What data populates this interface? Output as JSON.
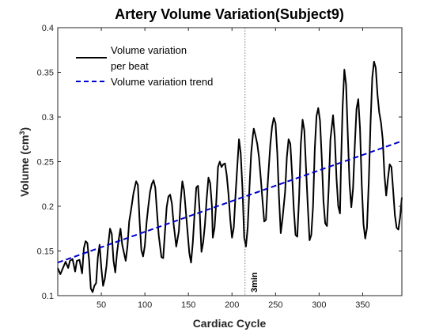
{
  "chart_data": {
    "type": "line",
    "title": "Artery Volume Variation(Subject9)",
    "xlabel": "Cardiac Cycle",
    "ylabel": "Volume (cm",
    "ylabel_sup": "3",
    "ylabel_close": ")",
    "xlim": [
      0,
      395
    ],
    "ylim": [
      0.1,
      0.4
    ],
    "xticks": [
      50,
      100,
      150,
      200,
      250,
      300,
      350
    ],
    "yticks": [
      0.1,
      0.15,
      0.2,
      0.25,
      0.3,
      0.35,
      0.4
    ],
    "ytick_labels": [
      "0.1",
      "0.15",
      "0.2",
      "0.25",
      "0.3",
      "0.35",
      "0.4"
    ],
    "grid": false,
    "legend_position": "top-left",
    "series": [
      {
        "name": "Volume variation per beat",
        "legend_lines": [
          "Volume variation",
          "per beat"
        ],
        "color": "#000000",
        "style": "solid",
        "points": [
          [
            0,
            0.131
          ],
          [
            3,
            0.124
          ],
          [
            6,
            0.131
          ],
          [
            9,
            0.138
          ],
          [
            12,
            0.131
          ],
          [
            14,
            0.139
          ],
          [
            17,
            0.141
          ],
          [
            20,
            0.127
          ],
          [
            22,
            0.139
          ],
          [
            25,
            0.14
          ],
          [
            28,
            0.125
          ],
          [
            30,
            0.153
          ],
          [
            32,
            0.161
          ],
          [
            34,
            0.159
          ],
          [
            36,
            0.14
          ],
          [
            38,
            0.108
          ],
          [
            40,
            0.104
          ],
          [
            42,
            0.111
          ],
          [
            44,
            0.114
          ],
          [
            46,
            0.143
          ],
          [
            48,
            0.157
          ],
          [
            50,
            0.131
          ],
          [
            52,
            0.111
          ],
          [
            54,
            0.119
          ],
          [
            56,
            0.134
          ],
          [
            58,
            0.158
          ],
          [
            60,
            0.175
          ],
          [
            62,
            0.169
          ],
          [
            64,
            0.139
          ],
          [
            66,
            0.126
          ],
          [
            68,
            0.148
          ],
          [
            70,
            0.163
          ],
          [
            72,
            0.175
          ],
          [
            74,
            0.157
          ],
          [
            76,
            0.148
          ],
          [
            78,
            0.139
          ],
          [
            80,
            0.155
          ],
          [
            82,
            0.183
          ],
          [
            84,
            0.195
          ],
          [
            87,
            0.215
          ],
          [
            90,
            0.228
          ],
          [
            92,
            0.224
          ],
          [
            94,
            0.183
          ],
          [
            96,
            0.151
          ],
          [
            98,
            0.144
          ],
          [
            100,
            0.156
          ],
          [
            102,
            0.182
          ],
          [
            104,
            0.2
          ],
          [
            106,
            0.216
          ],
          [
            108,
            0.225
          ],
          [
            110,
            0.229
          ],
          [
            112,
            0.221
          ],
          [
            114,
            0.193
          ],
          [
            116,
            0.167
          ],
          [
            119,
            0.143
          ],
          [
            121,
            0.142
          ],
          [
            123,
            0.171
          ],
          [
            125,
            0.199
          ],
          [
            127,
            0.211
          ],
          [
            129,
            0.213
          ],
          [
            131,
            0.203
          ],
          [
            133,
            0.18
          ],
          [
            136,
            0.155
          ],
          [
            139,
            0.172
          ],
          [
            141,
            0.205
          ],
          [
            143,
            0.228
          ],
          [
            145,
            0.218
          ],
          [
            148,
            0.183
          ],
          [
            151,
            0.148
          ],
          [
            153,
            0.137
          ],
          [
            155,
            0.159
          ],
          [
            157,
            0.191
          ],
          [
            159,
            0.221
          ],
          [
            161,
            0.223
          ],
          [
            163,
            0.193
          ],
          [
            165,
            0.149
          ],
          [
            167,
            0.16
          ],
          [
            169,
            0.18
          ],
          [
            171,
            0.209
          ],
          [
            173,
            0.232
          ],
          [
            175,
            0.226
          ],
          [
            177,
            0.2
          ],
          [
            178,
            0.165
          ],
          [
            180,
            0.176
          ],
          [
            182,
            0.205
          ],
          [
            184,
            0.244
          ],
          [
            186,
            0.25
          ],
          [
            188,
            0.244
          ],
          [
            190,
            0.247
          ],
          [
            192,
            0.248
          ],
          [
            194,
            0.235
          ],
          [
            196,
            0.214
          ],
          [
            198,
            0.185
          ],
          [
            200,
            0.165
          ],
          [
            202,
            0.176
          ],
          [
            204,
            0.212
          ],
          [
            206,
            0.244
          ],
          [
            208,
            0.275
          ],
          [
            210,
            0.259
          ],
          [
            212,
            0.22
          ],
          [
            214,
            0.165
          ],
          [
            216,
            0.155
          ],
          [
            218,
            0.176
          ],
          [
            220,
            0.22
          ],
          [
            222,
            0.259
          ],
          [
            224,
            0.28
          ],
          [
            225,
            0.287
          ],
          [
            227,
            0.279
          ],
          [
            229,
            0.27
          ],
          [
            231,
            0.255
          ],
          [
            233,
            0.232
          ],
          [
            235,
            0.207
          ],
          [
            237,
            0.183
          ],
          [
            239,
            0.185
          ],
          [
            241,
            0.225
          ],
          [
            244,
            0.269
          ],
          [
            246,
            0.289
          ],
          [
            248,
            0.299
          ],
          [
            250,
            0.293
          ],
          [
            252,
            0.26
          ],
          [
            254,
            0.21
          ],
          [
            256,
            0.17
          ],
          [
            258,
            0.186
          ],
          [
            261,
            0.216
          ],
          [
            263,
            0.255
          ],
          [
            265,
            0.275
          ],
          [
            267,
            0.27
          ],
          [
            269,
            0.236
          ],
          [
            271,
            0.197
          ],
          [
            273,
            0.168
          ],
          [
            275,
            0.166
          ],
          [
            277,
            0.21
          ],
          [
            279,
            0.27
          ],
          [
            281,
            0.297
          ],
          [
            283,
            0.285
          ],
          [
            285,
            0.242
          ],
          [
            287,
            0.2
          ],
          [
            289,
            0.162
          ],
          [
            291,
            0.168
          ],
          [
            293,
            0.2
          ],
          [
            295,
            0.264
          ],
          [
            297,
            0.301
          ],
          [
            299,
            0.31
          ],
          [
            301,
            0.296
          ],
          [
            303,
            0.255
          ],
          [
            305,
            0.206
          ],
          [
            307,
            0.181
          ],
          [
            309,
            0.178
          ],
          [
            311,
            0.22
          ],
          [
            313,
            0.275
          ],
          [
            316,
            0.302
          ],
          [
            318,
            0.277
          ],
          [
            320,
            0.231
          ],
          [
            322,
            0.2
          ],
          [
            324,
            0.192
          ],
          [
            325,
            0.24
          ],
          [
            327,
            0.311
          ],
          [
            329,
            0.353
          ],
          [
            331,
            0.336
          ],
          [
            333,
            0.279
          ],
          [
            335,
            0.225
          ],
          [
            337,
            0.199
          ],
          [
            339,
            0.22
          ],
          [
            341,
            0.268
          ],
          [
            343,
            0.309
          ],
          [
            345,
            0.32
          ],
          [
            347,
            0.287
          ],
          [
            349,
            0.224
          ],
          [
            351,
            0.18
          ],
          [
            353,
            0.164
          ],
          [
            355,
            0.176
          ],
          [
            357,
            0.228
          ],
          [
            359,
            0.293
          ],
          [
            361,
            0.344
          ],
          [
            363,
            0.362
          ],
          [
            365,
            0.355
          ],
          [
            367,
            0.325
          ],
          [
            369,
            0.305
          ],
          [
            371,
            0.294
          ],
          [
            373,
            0.275
          ],
          [
            375,
            0.235
          ],
          [
            377,
            0.212
          ],
          [
            379,
            0.231
          ],
          [
            381,
            0.247
          ],
          [
            383,
            0.244
          ],
          [
            385,
            0.218
          ],
          [
            387,
            0.19
          ],
          [
            389,
            0.176
          ],
          [
            391,
            0.174
          ],
          [
            393,
            0.188
          ],
          [
            395,
            0.21
          ]
        ]
      },
      {
        "name": "Volume variation trend",
        "color": "#0000cc",
        "style": "dashed",
        "points": [
          [
            0,
            0.137
          ],
          [
            395,
            0.273
          ]
        ]
      }
    ],
    "annotations": [
      {
        "text": "3min",
        "x": 215,
        "orientation": "vertical",
        "line_style": "dotted",
        "color": "#555555"
      }
    ]
  }
}
